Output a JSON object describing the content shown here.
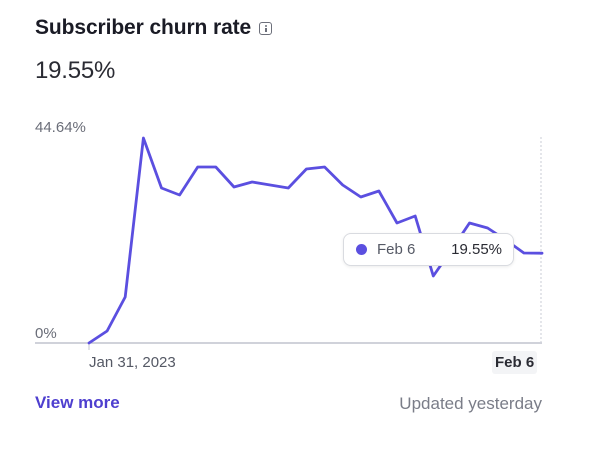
{
  "header": {
    "title": "Subscriber churn rate",
    "info_icon": "info-icon",
    "current_value": "19.55%"
  },
  "axis": {
    "y_max_label": "44.64%",
    "y_min_label": "0%",
    "x_start_label": "Jan 31, 2023",
    "x_end_label": "Feb 6"
  },
  "tooltip": {
    "date": "Feb 6",
    "value": "19.55%",
    "dot_color": "#5b4fe0"
  },
  "footer": {
    "link_label": "View more",
    "updated_text": "Updated yesterday"
  },
  "colors": {
    "line": "#5b4fe0",
    "axis": "#b4b6c4",
    "link": "#4e3fcf"
  },
  "chart_data": {
    "type": "line",
    "title": "Subscriber churn rate",
    "xlabel": "",
    "ylabel": "",
    "x_tick_labels": [
      "Jan 31, 2023",
      "Feb 6"
    ],
    "y_tick_labels": [
      "0%",
      "44.64%"
    ],
    "ylim": [
      0,
      44.64
    ],
    "grid": false,
    "legend": null,
    "series": [
      {
        "name": "Subscriber churn rate",
        "values": [
          0,
          2.61,
          10.02,
          44.64,
          33.75,
          32.23,
          38.33,
          38.33,
          33.97,
          35.06,
          34.4,
          33.75,
          37.89,
          38.33,
          34.4,
          31.79,
          33.1,
          26.13,
          27.65,
          14.59,
          20.25,
          26.13,
          25.04,
          22.43,
          19.6,
          19.55
        ]
      }
    ],
    "annotations": [
      {
        "type": "tooltip",
        "x": "Feb 6",
        "label": "Feb 6",
        "value": "19.55%"
      }
    ]
  }
}
